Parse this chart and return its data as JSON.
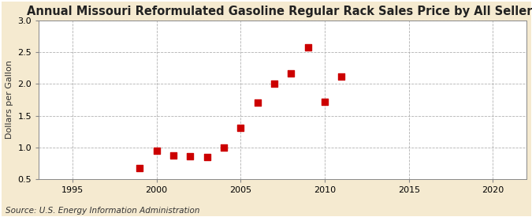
{
  "title": "Annual Missouri Reformulated Gasoline Regular Rack Sales Price by All Sellers",
  "ylabel": "Dollars per Gallon",
  "source": "Source: U.S. Energy Information Administration",
  "fig_background_color": "#f5ead0",
  "plot_background_color": "#ffffff",
  "scatter_color": "#cc0000",
  "x_values": [
    1999,
    2000,
    2001,
    2002,
    2003,
    2004,
    2005,
    2006,
    2007,
    2008,
    2009,
    2010,
    2011
  ],
  "y_values": [
    0.67,
    0.95,
    0.87,
    0.86,
    0.85,
    1.0,
    1.31,
    1.7,
    2.0,
    2.17,
    2.58,
    1.72,
    2.12
  ],
  "xlim": [
    1993,
    2022
  ],
  "ylim": [
    0.5,
    3.0
  ],
  "xticks": [
    1995,
    2000,
    2005,
    2010,
    2015,
    2020
  ],
  "yticks": [
    0.5,
    1.0,
    1.5,
    2.0,
    2.5,
    3.0
  ],
  "title_fontsize": 10.5,
  "label_fontsize": 8,
  "tick_fontsize": 8,
  "source_fontsize": 7.5,
  "marker_size": 28
}
